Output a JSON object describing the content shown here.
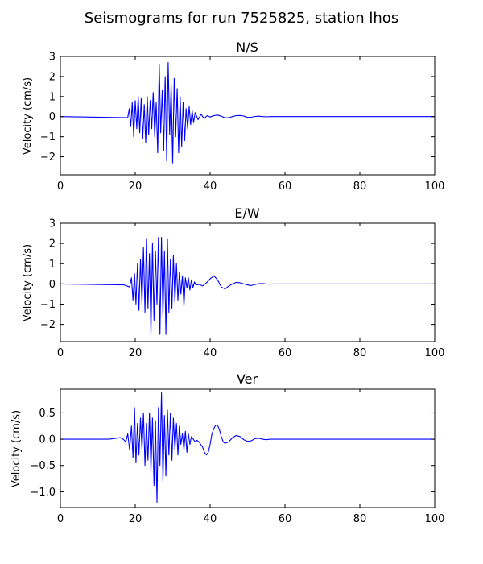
{
  "figure_title": "Seismograms for run 7525825, station lhos",
  "colors": {
    "trace": "#0000ff",
    "axes": "#000000",
    "background": "#ffffff"
  },
  "chart_data": [
    {
      "type": "line",
      "title": "N/S",
      "xlabel": "",
      "ylabel": "Velocity (cm/s)",
      "xlim": [
        0,
        100
      ],
      "ylim": [
        -2.9,
        3.0
      ],
      "xticks": [
        0,
        20,
        40,
        60,
        80,
        100
      ],
      "yticks": [
        -2,
        -1,
        0,
        1,
        2,
        3
      ],
      "xtick_labels": [
        "0",
        "20",
        "40",
        "60",
        "80",
        "100"
      ],
      "ytick_labels": [
        "−2",
        "−1",
        "0",
        "1",
        "2",
        "3"
      ],
      "grid": false,
      "series": [
        {
          "x": [
            0,
            18.0,
            18.4,
            18.8,
            19.2,
            19.6,
            20.0,
            20.4,
            20.8,
            21.2,
            21.6,
            22.0,
            22.4,
            22.8,
            23.2,
            23.6,
            24.0,
            24.4,
            24.8,
            25.2,
            25.6,
            26.0,
            26.4,
            26.8,
            27.2,
            27.6,
            28.0,
            28.4,
            28.8,
            29.2,
            29.6,
            30.0,
            30.4,
            30.8,
            31.2,
            31.6,
            32.0,
            32.4,
            32.8,
            33.2,
            33.6,
            34.0,
            34.4,
            34.8,
            35.2,
            35.6,
            36.0,
            36.8,
            37.6,
            38.4,
            39.2,
            40.0,
            41.0,
            42.0,
            43.0,
            44.0,
            45.0,
            46.0,
            47.0,
            48.0,
            49.0,
            50.0,
            51.0,
            52.0,
            53.0,
            54.0,
            55.0,
            56.0,
            57.0,
            60.0,
            100
          ],
          "y": [
            0,
            -0.05,
            0.4,
            -0.5,
            0.7,
            -1.0,
            0.8,
            -0.6,
            1.0,
            -0.8,
            0.9,
            -1.1,
            0.6,
            -1.3,
            1.0,
            -0.9,
            0.8,
            -0.6,
            1.2,
            -1.0,
            0.7,
            -1.8,
            2.6,
            -0.8,
            1.3,
            -1.7,
            2.0,
            -2.2,
            2.7,
            -0.9,
            1.6,
            -2.3,
            1.9,
            -1.0,
            1.4,
            -1.8,
            1.0,
            -1.5,
            0.7,
            -1.2,
            0.4,
            -0.6,
            0.5,
            -0.4,
            0.3,
            -0.3,
            0.2,
            -0.15,
            0.12,
            -0.1,
            0.05,
            -0.02,
            0.05,
            0.08,
            0.02,
            -0.06,
            -0.05,
            0.0,
            0.05,
            0.06,
            0.03,
            -0.04,
            -0.03,
            0.01,
            0.02,
            0.0,
            -0.01,
            0.0,
            0.0,
            0.0,
            0.0
          ]
        }
      ]
    },
    {
      "type": "line",
      "title": "E/W",
      "xlabel": "",
      "ylabel": "Velocity (cm/s)",
      "xlim": [
        0,
        100
      ],
      "ylim": [
        -2.85,
        3.0
      ],
      "xticks": [
        0,
        20,
        40,
        60,
        80,
        100
      ],
      "yticks": [
        -2,
        -1,
        0,
        1,
        2,
        3
      ],
      "xtick_labels": [
        "0",
        "20",
        "40",
        "60",
        "80",
        "100"
      ],
      "ytick_labels": [
        "−2",
        "−1",
        "0",
        "1",
        "2",
        "3"
      ],
      "grid": false,
      "series": [
        {
          "x": [
            0,
            17.0,
            18.5,
            19.0,
            19.4,
            19.8,
            20.2,
            20.6,
            21.0,
            21.4,
            21.8,
            22.2,
            22.6,
            23.0,
            23.4,
            23.8,
            24.2,
            24.6,
            25.0,
            25.4,
            25.8,
            26.2,
            26.6,
            27.0,
            27.4,
            27.8,
            28.2,
            28.6,
            29.0,
            29.4,
            29.8,
            30.2,
            30.6,
            31.0,
            31.4,
            31.8,
            32.2,
            32.6,
            33.0,
            33.4,
            33.8,
            34.2,
            34.6,
            35.0,
            35.4,
            35.8,
            36.2,
            37.0,
            38.0,
            39.0,
            40.0,
            41.0,
            42.0,
            43.0,
            44.0,
            45.0,
            46.0,
            47.0,
            48.0,
            49.0,
            50.0,
            51.0,
            52.0,
            53.0,
            54.0,
            55.0,
            56.0,
            57.0,
            60.0,
            100
          ],
          "y": [
            0,
            -0.05,
            -0.15,
            0.3,
            -0.8,
            0.5,
            -1.0,
            1.0,
            -1.3,
            1.2,
            -1.0,
            1.8,
            -1.4,
            2.2,
            -1.2,
            1.5,
            -2.5,
            2.0,
            -1.8,
            1.6,
            -1.0,
            2.3,
            -2.5,
            2.3,
            -1.6,
            1.6,
            -2.5,
            2.2,
            -1.4,
            1.2,
            -1.2,
            1.4,
            -0.9,
            1.0,
            -0.8,
            0.6,
            -0.5,
            0.4,
            -1.1,
            0.3,
            -0.2,
            0.3,
            -0.3,
            0.2,
            -0.2,
            0.1,
            -0.05,
            -0.02,
            -0.1,
            0.05,
            0.25,
            0.4,
            0.2,
            -0.15,
            -0.25,
            -0.1,
            0.0,
            0.08,
            0.06,
            0.0,
            -0.05,
            -0.08,
            -0.03,
            0.01,
            0.02,
            0.0,
            -0.01,
            0.0,
            0.0,
            0.0
          ]
        }
      ]
    },
    {
      "type": "line",
      "title": "Ver",
      "xlabel": "",
      "ylabel": "Velocity (cm/s)",
      "xlim": [
        0,
        100
      ],
      "ylim": [
        -1.3,
        0.95
      ],
      "xticks": [
        0,
        20,
        40,
        60,
        80,
        100
      ],
      "yticks": [
        -1.0,
        -0.5,
        0.0,
        0.5
      ],
      "xtick_labels": [
        "0",
        "20",
        "40",
        "60",
        "80",
        "100"
      ],
      "ytick_labels": [
        "−1.0",
        "−0.5",
        "0.0",
        "0.5"
      ],
      "grid": false,
      "series": [
        {
          "x": [
            0,
            13.0,
            15.0,
            16.0,
            16.8,
            17.5,
            18.0,
            18.5,
            19.0,
            19.4,
            19.8,
            20.2,
            20.6,
            21.0,
            21.4,
            21.8,
            22.2,
            22.6,
            23.0,
            23.4,
            23.8,
            24.2,
            24.6,
            25.0,
            25.4,
            25.8,
            26.2,
            26.6,
            27.0,
            27.4,
            27.8,
            28.2,
            28.6,
            29.0,
            29.4,
            29.8,
            30.2,
            30.6,
            31.0,
            31.4,
            31.8,
            32.2,
            32.6,
            33.0,
            33.4,
            33.8,
            34.2,
            34.6,
            35.0,
            35.5,
            36.0,
            36.5,
            37.0,
            37.5,
            38.0,
            38.5,
            39.0,
            39.5,
            40.0,
            40.5,
            41.0,
            41.5,
            42.0,
            42.5,
            43.0,
            43.5,
            44.0,
            45.0,
            46.0,
            47.0,
            48.0,
            49.0,
            50.0,
            51.0,
            52.0,
            53.0,
            54.0,
            55.0,
            56.0,
            57.0,
            58.0,
            60.0,
            100
          ],
          "y": [
            0,
            0.0,
            0.02,
            0.03,
            0.0,
            -0.05,
            0.1,
            -0.2,
            0.25,
            -0.35,
            0.6,
            -0.45,
            0.3,
            -0.3,
            0.4,
            -0.2,
            0.5,
            -0.5,
            0.3,
            -0.4,
            0.5,
            -0.6,
            0.4,
            -0.88,
            0.35,
            -1.2,
            0.6,
            -0.5,
            0.88,
            -0.8,
            0.45,
            -0.7,
            0.55,
            -0.3,
            0.5,
            -0.4,
            0.4,
            -0.2,
            0.3,
            -0.3,
            0.25,
            -0.1,
            0.1,
            -0.2,
            0.15,
            -0.25,
            0.1,
            -0.1,
            0.05,
            0.0,
            -0.05,
            -0.02,
            -0.05,
            -0.1,
            -0.15,
            -0.25,
            -0.3,
            -0.25,
            -0.1,
            0.1,
            0.2,
            0.27,
            0.26,
            0.18,
            0.05,
            -0.05,
            -0.08,
            -0.05,
            0.03,
            0.07,
            0.05,
            -0.01,
            -0.04,
            -0.03,
            0.01,
            0.02,
            0.0,
            -0.01,
            0.0,
            0.0,
            0.0,
            0.0,
            0.0
          ]
        }
      ]
    }
  ]
}
